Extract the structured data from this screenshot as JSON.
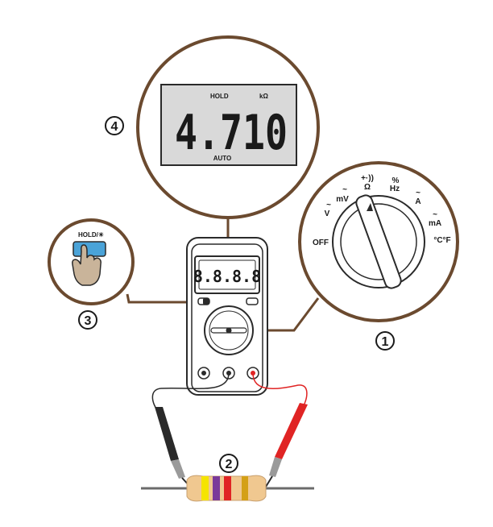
{
  "callouts": {
    "dial": "1",
    "resistor": "2",
    "hold_button": "3",
    "display": "4"
  },
  "display": {
    "hold_indicator": "HOLD",
    "unit": "kΩ",
    "reading": "4.710",
    "mode": "AUTO"
  },
  "meter": {
    "screen_digits": "8.8.8.8"
  },
  "hold_button": {
    "label": "HOLD/☀"
  },
  "dial_labels": {
    "off": "OFF",
    "v_ac_dc": "V",
    "mv": "mV",
    "ohm": "Ω",
    "hz": "Hz",
    "percent": "%",
    "amp": "A",
    "ma": "mA",
    "temp": "°C°F"
  },
  "colors": {
    "outline": "#6b4a2f",
    "lcd": "#d9d9d9",
    "button_blue": "#4aa3d8",
    "probe_red": "#e02424",
    "probe_black": "#2a2a2a",
    "resistor_body": "#f0c890",
    "band1": "#f5e400",
    "band2": "#7a3a9a",
    "band3": "#e02424",
    "band4": "#d4a017"
  }
}
